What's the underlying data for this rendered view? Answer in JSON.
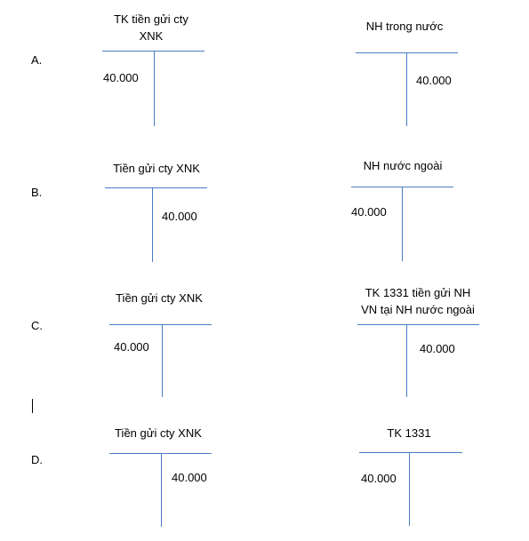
{
  "options": [
    {
      "letter": "A.",
      "left": {
        "title_lines": [
          "TK tiền gửi cty",
          "XNK"
        ],
        "amount": "40.000",
        "side": "debit"
      },
      "right": {
        "title_lines": [
          "NH trong nước"
        ],
        "amount": "40.000",
        "side": "credit"
      }
    },
    {
      "letter": "B.",
      "left": {
        "title_lines": [
          "Tiền gửi cty XNK"
        ],
        "amount": "40.000",
        "side": "credit"
      },
      "right": {
        "title_lines": [
          "NH nước ngoài"
        ],
        "amount": "40.000",
        "side": "debit"
      }
    },
    {
      "letter": "C.",
      "left": {
        "title_lines": [
          "Tiền gửi cty XNK"
        ],
        "amount": "40.000",
        "side": "debit"
      },
      "right": {
        "title_lines": [
          "TK 1331 tiền gửi NH",
          "VN tại NH nước ngoài"
        ],
        "amount": "40.000",
        "side": "credit"
      }
    },
    {
      "letter": "D.",
      "left": {
        "title_lines": [
          "Tiền gửi cty XNK"
        ],
        "amount": "40.000",
        "side": "credit"
      },
      "right": {
        "title_lines": [
          "TK 1331"
        ],
        "amount": "40.000",
        "side": "debit"
      }
    }
  ]
}
